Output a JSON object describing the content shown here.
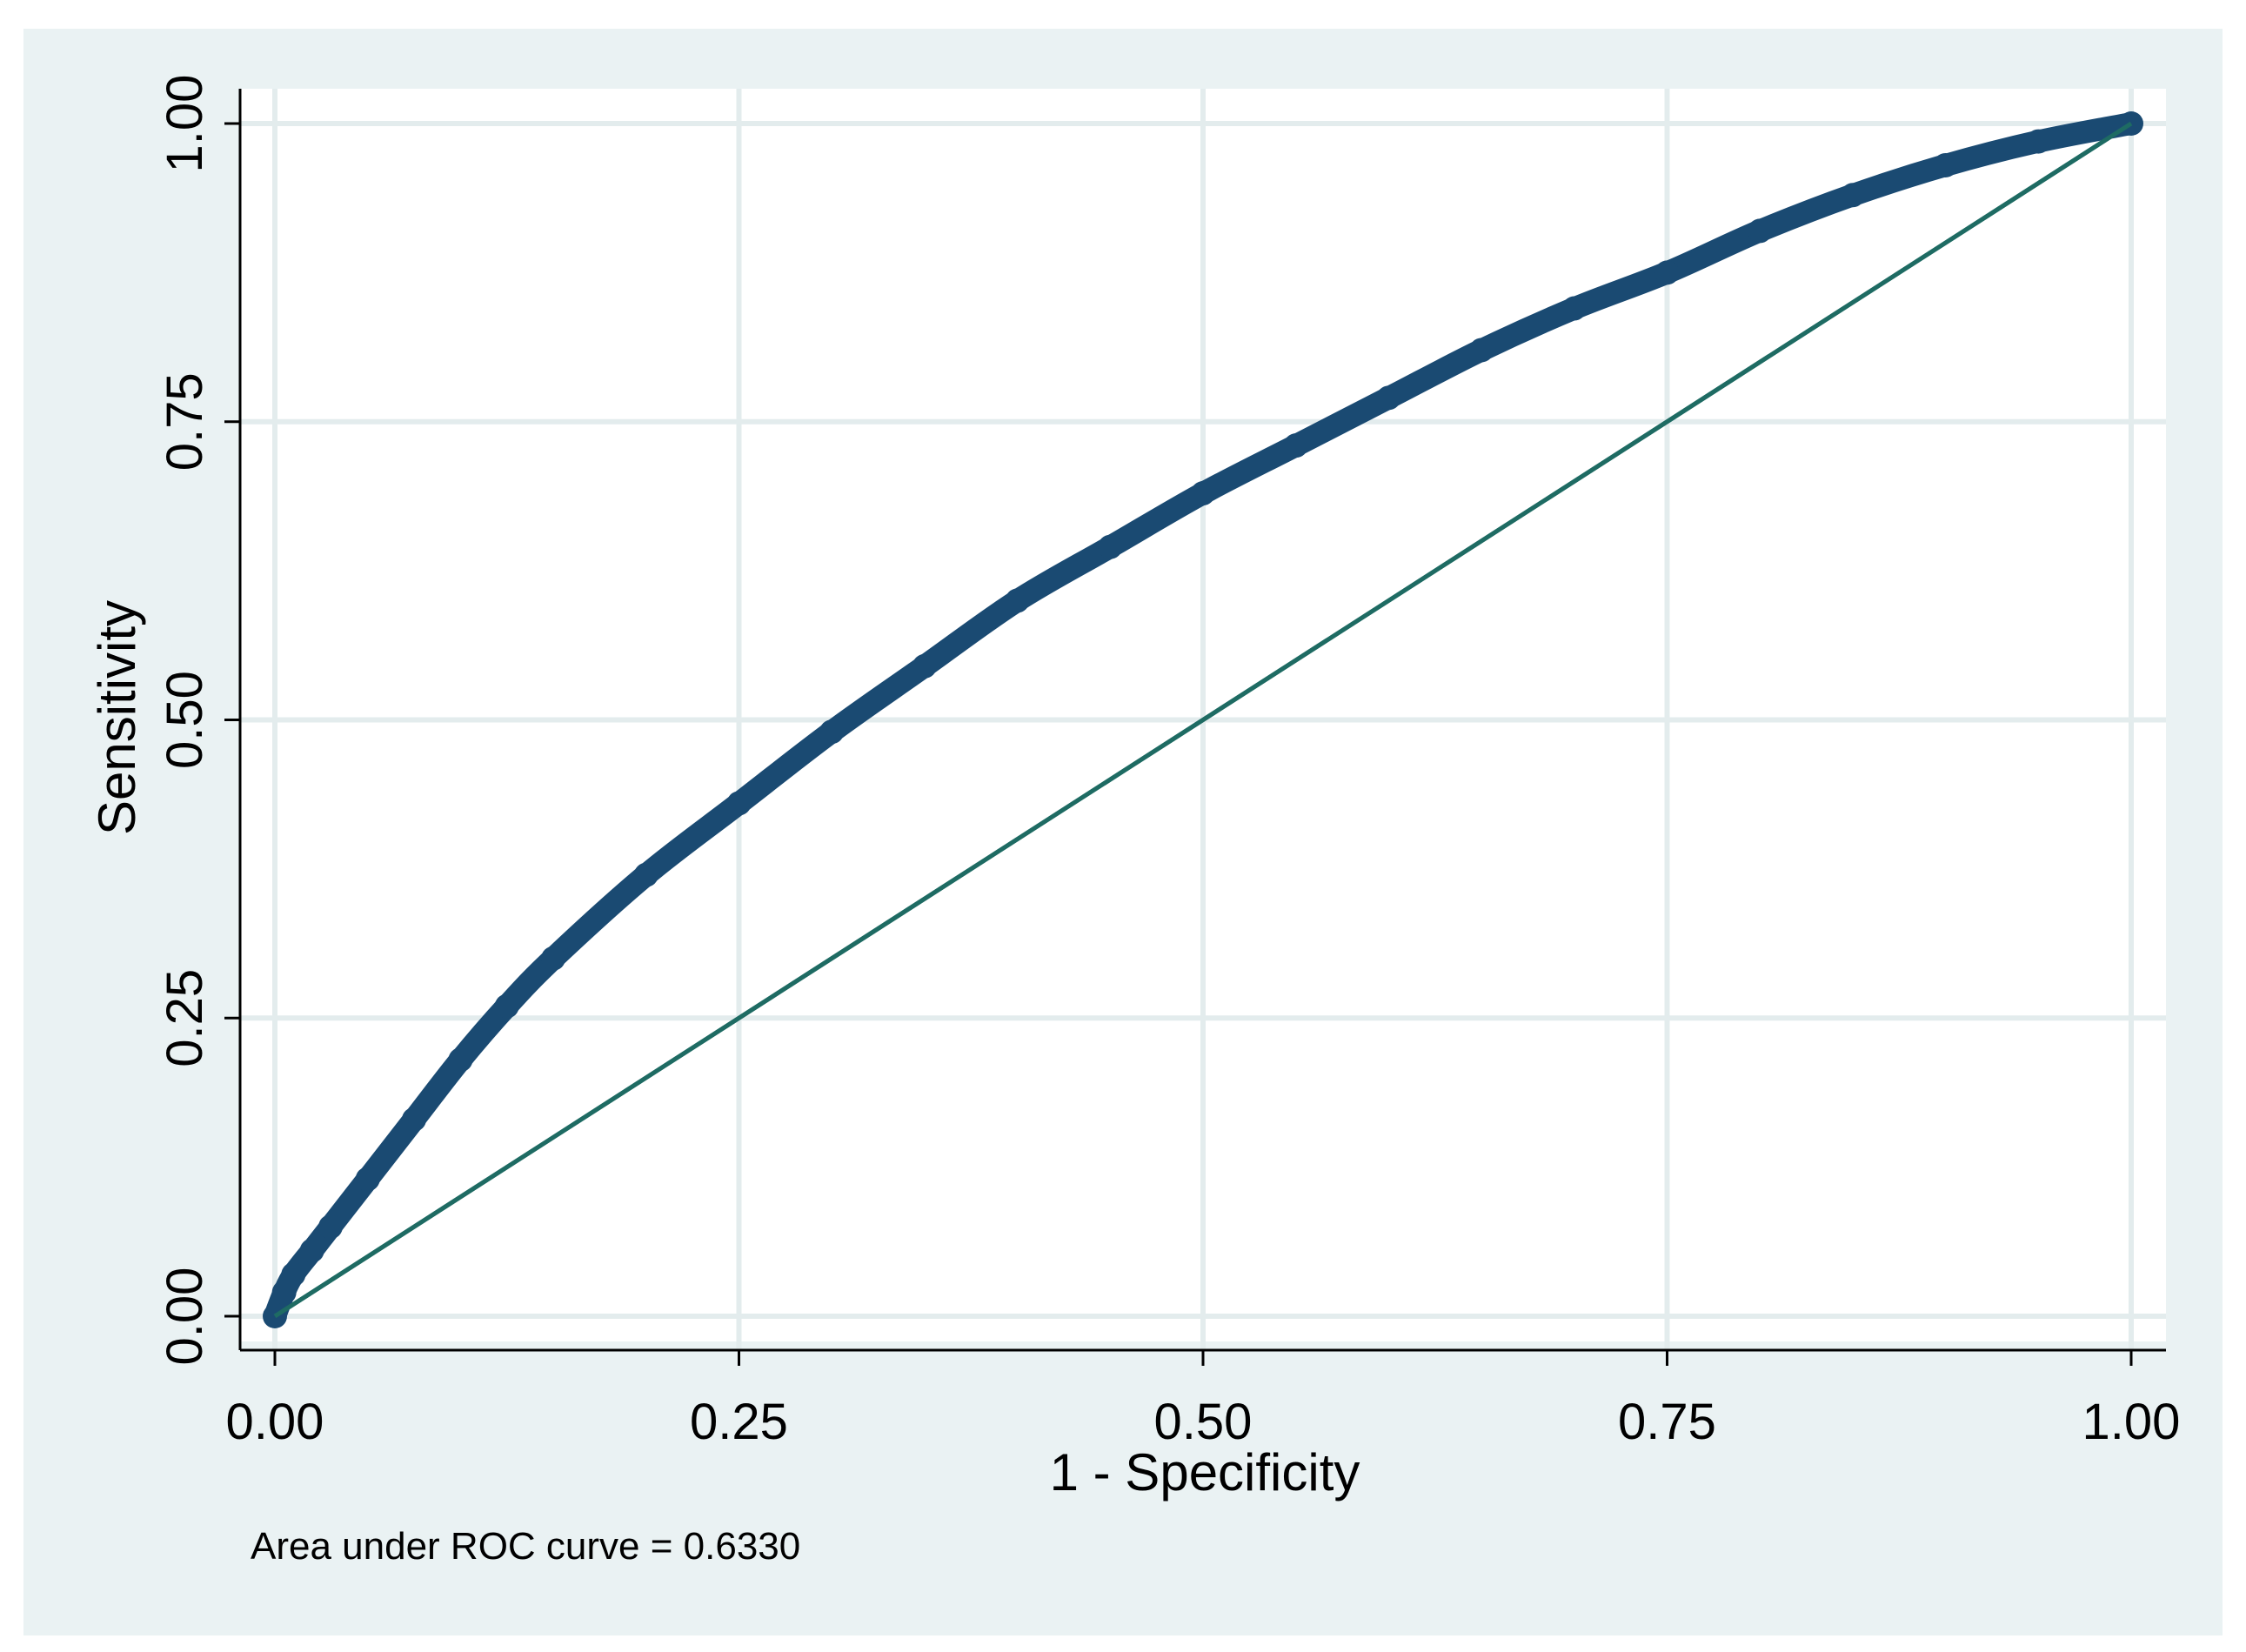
{
  "chart_data": {
    "type": "line",
    "xlabel": "1 - Specificity",
    "ylabel": "Sensitivity",
    "xlim": [
      0,
      1
    ],
    "ylim": [
      0,
      1
    ],
    "x_ticks": [
      0,
      0.25,
      0.5,
      0.75,
      1
    ],
    "x_tick_labels": [
      "0.00",
      "0.25",
      "0.50",
      "0.75",
      "1.00"
    ],
    "y_ticks": [
      0,
      0.25,
      0.5,
      0.75,
      1
    ],
    "y_tick_labels": [
      "0.00",
      "0.25",
      "0.50",
      "0.75",
      "1.00"
    ],
    "grid": true,
    "legend": "none",
    "note": "Area under ROC curve = 0.6330",
    "series": [
      {
        "style": "thick line of markers",
        "color": "#1a4a72",
        "x": [
          0,
          0.005,
          0.01,
          0.02,
          0.03,
          0.05,
          0.075,
          0.1,
          0.125,
          0.15,
          0.2,
          0.25,
          0.3,
          0.35,
          0.4,
          0.45,
          0.5,
          0.55,
          0.6,
          0.65,
          0.7,
          0.75,
          0.8,
          0.85,
          0.9,
          0.95,
          1
        ],
        "y": [
          0,
          0.02,
          0.035,
          0.055,
          0.075,
          0.115,
          0.165,
          0.215,
          0.26,
          0.3,
          0.37,
          0.43,
          0.49,
          0.545,
          0.6,
          0.645,
          0.69,
          0.73,
          0.77,
          0.81,
          0.845,
          0.875,
          0.91,
          0.94,
          0.965,
          0.985,
          1
        ]
      },
      {
        "style": "reference line",
        "color": "#1e6b63",
        "x": [
          0,
          1
        ],
        "y": [
          0,
          1
        ]
      }
    ]
  }
}
